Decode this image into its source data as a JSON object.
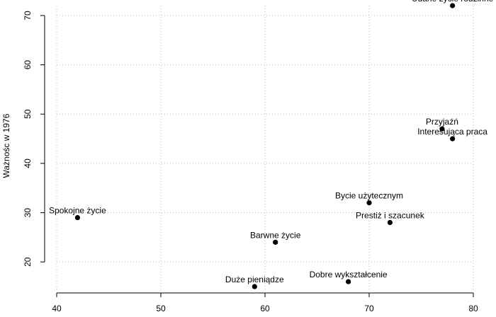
{
  "chart_data": {
    "type": "scatter",
    "title": "",
    "xlabel": "",
    "ylabel": "Ważnośc w 1976",
    "xlim": [
      40,
      80
    ],
    "ylim": [
      14,
      72
    ],
    "xticks": [
      40,
      50,
      60,
      70,
      80
    ],
    "yticks": [
      20,
      30,
      40,
      50,
      60,
      70
    ],
    "grid": true,
    "points": [
      {
        "label": "Udane życie rodzinne",
        "x": 78,
        "y": 72
      },
      {
        "label": "Przyjaźń",
        "x": 77,
        "y": 47
      },
      {
        "label": "Interesująca praca",
        "x": 78,
        "y": 45
      },
      {
        "label": "Bycie użytecznym",
        "x": 70,
        "y": 32
      },
      {
        "label": "Prestiż i szacunek",
        "x": 72,
        "y": 28
      },
      {
        "label": "Spokojne życie",
        "x": 42,
        "y": 29
      },
      {
        "label": "Barwne życie",
        "x": 61,
        "y": 24
      },
      {
        "label": "Dobre wykształcenie",
        "x": 68,
        "y": 16
      },
      {
        "label": "Duże pieniądze",
        "x": 59,
        "y": 15
      }
    ]
  }
}
